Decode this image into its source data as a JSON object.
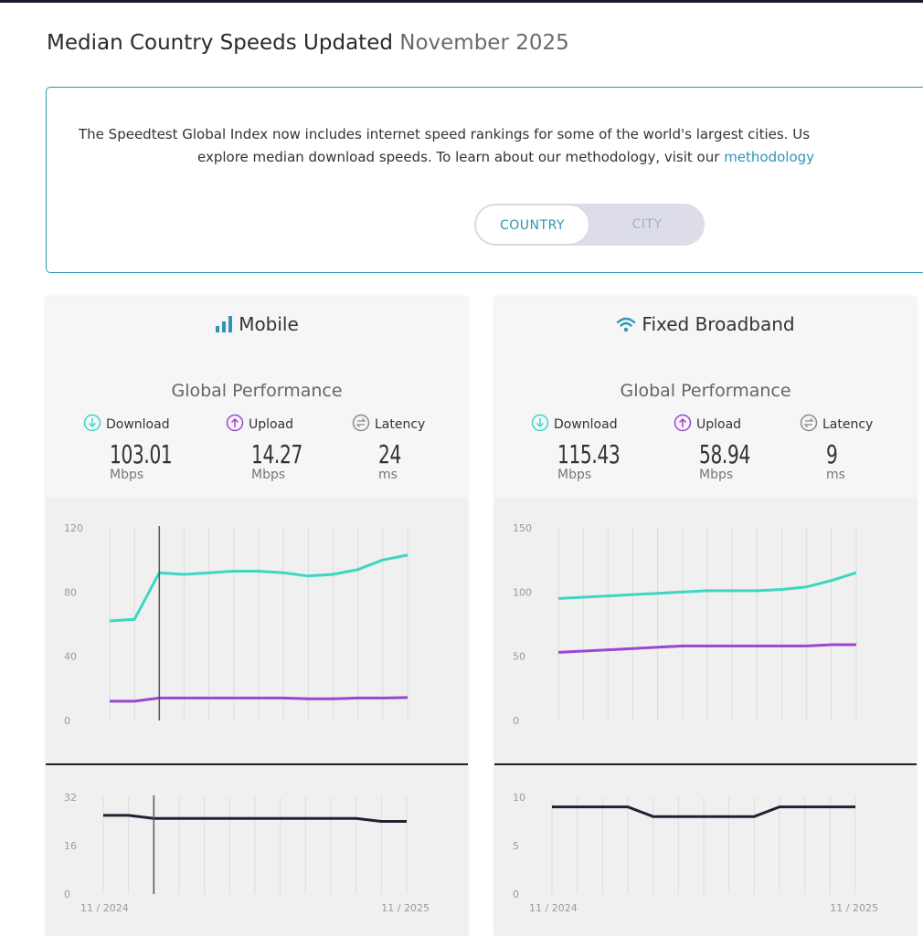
{
  "page": {
    "title": "Median Country Speeds Updated",
    "title_date": "November 2025"
  },
  "intro": {
    "line1": "The Speedtest Global Index now includes internet speed rankings for some of the world's largest cities. Us",
    "line2_prefix": "explore median download speeds. To learn about our methodology, visit our",
    "line2_link": "methodology"
  },
  "toggle": {
    "country": "COUNTRY",
    "city": "CITY",
    "selected": "COUNTRY"
  },
  "colors": {
    "download": "#3dd6c3",
    "upload": "#9c45d1",
    "latency": "#1f2233",
    "accent": "#2e95b4"
  },
  "cards": {
    "mobile": {
      "title": "Mobile",
      "icon": "signal-bars-icon",
      "perf_title": "Global Performance",
      "download": {
        "label": "Download",
        "value": "103.01",
        "unit": "Mbps"
      },
      "upload": {
        "label": "Upload",
        "value": "14.27",
        "unit": "Mbps"
      },
      "latency": {
        "label": "Latency",
        "value": "24",
        "unit": "ms"
      }
    },
    "fixed": {
      "title": "Fixed Broadband",
      "icon": "wifi-icon",
      "perf_title": "Global Performance",
      "download": {
        "label": "Download",
        "value": "115.43",
        "unit": "Mbps"
      },
      "upload": {
        "label": "Upload",
        "value": "58.94",
        "unit": "Mbps"
      },
      "latency": {
        "label": "Latency",
        "value": "9",
        "unit": "ms"
      }
    }
  },
  "chart_data": [
    {
      "type": "line",
      "chart": "mobile-speed",
      "x_labels": [
        "11 / 2024",
        "",
        "",
        "",
        "",
        "",
        "",
        "",
        "",
        "",
        "",
        "",
        "11 / 2025"
      ],
      "yticks": [
        0,
        40,
        80,
        120
      ],
      "ylim": [
        0,
        120
      ],
      "grid": "vertical",
      "series": [
        {
          "values": [
            62,
            63,
            92,
            91,
            92,
            93,
            93,
            92,
            90,
            91,
            94,
            100,
            103
          ],
          "color": "#3dd6c3"
        },
        {
          "values": [
            12,
            12,
            14,
            14,
            14,
            14,
            14,
            14,
            13.5,
            13.5,
            14,
            14,
            14.3
          ],
          "color": "#9c45d1"
        }
      ]
    },
    {
      "type": "line",
      "chart": "fixed-speed",
      "x_labels": [
        "11 / 2024",
        "",
        "",
        "",
        "",
        "",
        "",
        "",
        "",
        "",
        "",
        "",
        "11 / 2025"
      ],
      "yticks": [
        0,
        50,
        100,
        150
      ],
      "ylim": [
        0,
        150
      ],
      "grid": "vertical",
      "series": [
        {
          "values": [
            95,
            96,
            97,
            98,
            99,
            100,
            101,
            101,
            101,
            102,
            104,
            109,
            115
          ],
          "color": "#3dd6c3"
        },
        {
          "values": [
            53,
            54,
            55,
            56,
            57,
            58,
            58,
            58,
            58,
            58,
            58,
            59,
            59
          ],
          "color": "#9c45d1"
        }
      ]
    },
    {
      "type": "line",
      "chart": "mobile-latency",
      "x_labels": [
        "11 / 2024",
        "",
        "",
        "",
        "",
        "",
        "",
        "",
        "",
        "",
        "",
        "",
        "11 / 2025"
      ],
      "yticks": [
        0,
        16,
        32
      ],
      "ylim": [
        0,
        32
      ],
      "grid": "vertical",
      "series": [
        {
          "values": [
            26,
            26,
            25,
            25,
            25,
            25,
            25,
            25,
            25,
            25,
            25,
            24,
            24
          ],
          "color": "#1f2233"
        }
      ]
    },
    {
      "type": "line",
      "chart": "fixed-latency",
      "x_labels": [
        "11 / 2024",
        "",
        "",
        "",
        "",
        "",
        "",
        "",
        "",
        "",
        "",
        "",
        "11 / 2025"
      ],
      "yticks": [
        0,
        5,
        10
      ],
      "ylim": [
        0,
        10
      ],
      "grid": "vertical",
      "series": [
        {
          "values": [
            9,
            9,
            9,
            9,
            8,
            8,
            8,
            8,
            8,
            9,
            9,
            9,
            9
          ],
          "color": "#1f2233"
        }
      ]
    }
  ]
}
